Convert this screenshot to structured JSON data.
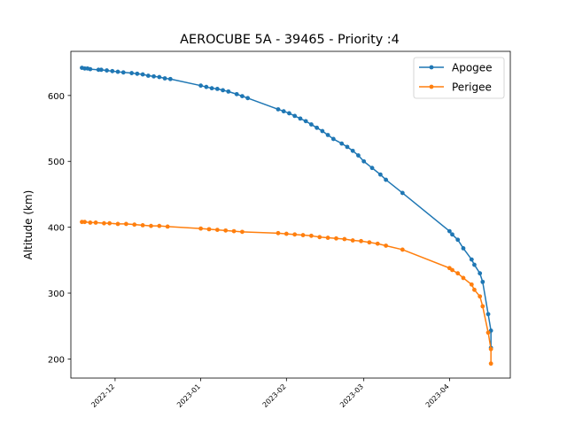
{
  "chart_data": {
    "type": "line",
    "title": "AEROCUBE 5A - 39465 - Priority :4",
    "xlabel": "",
    "ylabel": "Altitude (km)",
    "xlim": [
      "2022-11-15",
      "2023-04-23"
    ],
    "ylim": [
      171,
      667
    ],
    "x_ticks": [
      "2022-12",
      "2023-01",
      "2023-02",
      "2023-03",
      "2023-04"
    ],
    "y_ticks": [
      200,
      300,
      400,
      500,
      600
    ],
    "grid": false,
    "legend_position": "top-right",
    "series": [
      {
        "name": "Apogee",
        "color": "#1f77b4",
        "points": [
          [
            "2022-11-19",
            642
          ],
          [
            "2022-11-20",
            641
          ],
          [
            "2022-11-21",
            641
          ],
          [
            "2022-11-22",
            640
          ],
          [
            "2022-11-25",
            639
          ],
          [
            "2022-11-26",
            639
          ],
          [
            "2022-11-28",
            638
          ],
          [
            "2022-11-30",
            637
          ],
          [
            "2022-12-02",
            636
          ],
          [
            "2022-12-04",
            635
          ],
          [
            "2022-12-07",
            634
          ],
          [
            "2022-12-09",
            633
          ],
          [
            "2022-12-11",
            632
          ],
          [
            "2022-12-13",
            630
          ],
          [
            "2022-12-15",
            629
          ],
          [
            "2022-12-17",
            628
          ],
          [
            "2022-12-19",
            626
          ],
          [
            "2022-12-21",
            625
          ],
          [
            "2023-01-01",
            615
          ],
          [
            "2023-01-03",
            613
          ],
          [
            "2023-01-05",
            611
          ],
          [
            "2023-01-07",
            610
          ],
          [
            "2023-01-09",
            608
          ],
          [
            "2023-01-11",
            606
          ],
          [
            "2023-01-14",
            602
          ],
          [
            "2023-01-16",
            599
          ],
          [
            "2023-01-18",
            596
          ],
          [
            "2023-01-29",
            579
          ],
          [
            "2023-01-31",
            576
          ],
          [
            "2023-02-02",
            573
          ],
          [
            "2023-02-04",
            569
          ],
          [
            "2023-02-06",
            565
          ],
          [
            "2023-02-08",
            561
          ],
          [
            "2023-02-10",
            556
          ],
          [
            "2023-02-12",
            551
          ],
          [
            "2023-02-14",
            546
          ],
          [
            "2023-02-16",
            540
          ],
          [
            "2023-02-18",
            534
          ],
          [
            "2023-02-21",
            527
          ],
          [
            "2023-02-23",
            522
          ],
          [
            "2023-02-25",
            516
          ],
          [
            "2023-02-27",
            509
          ],
          [
            "2023-03-01",
            500
          ],
          [
            "2023-03-04",
            490
          ],
          [
            "2023-03-07",
            480
          ],
          [
            "2023-03-09",
            472
          ],
          [
            "2023-03-15",
            452
          ],
          [
            "2023-04-01",
            394
          ],
          [
            "2023-04-02",
            389
          ],
          [
            "2023-04-04",
            381
          ],
          [
            "2023-04-06",
            368
          ],
          [
            "2023-04-09",
            351
          ],
          [
            "2023-04-10",
            343
          ],
          [
            "2023-04-12",
            330
          ],
          [
            "2023-04-13",
            317
          ],
          [
            "2023-04-15",
            268
          ],
          [
            "2023-04-16",
            243
          ],
          [
            "2023-04-16",
            217
          ]
        ]
      },
      {
        "name": "Perigee",
        "color": "#ff7f0e",
        "points": [
          [
            "2022-11-19",
            408
          ],
          [
            "2022-11-20",
            408
          ],
          [
            "2022-11-22",
            407
          ],
          [
            "2022-11-24",
            407
          ],
          [
            "2022-11-27",
            406
          ],
          [
            "2022-11-29",
            406
          ],
          [
            "2022-12-02",
            405
          ],
          [
            "2022-12-05",
            405
          ],
          [
            "2022-12-08",
            404
          ],
          [
            "2022-12-11",
            403
          ],
          [
            "2022-12-14",
            402
          ],
          [
            "2022-12-17",
            402
          ],
          [
            "2022-12-20",
            401
          ],
          [
            "2023-01-01",
            398
          ],
          [
            "2023-01-04",
            397
          ],
          [
            "2023-01-07",
            396
          ],
          [
            "2023-01-10",
            395
          ],
          [
            "2023-01-13",
            394
          ],
          [
            "2023-01-16",
            393
          ],
          [
            "2023-01-29",
            391
          ],
          [
            "2023-02-01",
            390
          ],
          [
            "2023-02-04",
            389
          ],
          [
            "2023-02-07",
            388
          ],
          [
            "2023-02-10",
            387
          ],
          [
            "2023-02-13",
            385
          ],
          [
            "2023-02-16",
            384
          ],
          [
            "2023-02-19",
            383
          ],
          [
            "2023-02-22",
            382
          ],
          [
            "2023-02-25",
            380
          ],
          [
            "2023-02-28",
            379
          ],
          [
            "2023-03-03",
            377
          ],
          [
            "2023-03-06",
            375
          ],
          [
            "2023-03-09",
            372
          ],
          [
            "2023-03-15",
            366
          ],
          [
            "2023-04-01",
            338
          ],
          [
            "2023-04-02",
            335
          ],
          [
            "2023-04-04",
            330
          ],
          [
            "2023-04-06",
            323
          ],
          [
            "2023-04-09",
            313
          ],
          [
            "2023-04-10",
            305
          ],
          [
            "2023-04-12",
            295
          ],
          [
            "2023-04-13",
            280
          ],
          [
            "2023-04-15",
            240
          ],
          [
            "2023-04-16",
            215
          ],
          [
            "2023-04-16",
            193
          ]
        ]
      }
    ]
  }
}
